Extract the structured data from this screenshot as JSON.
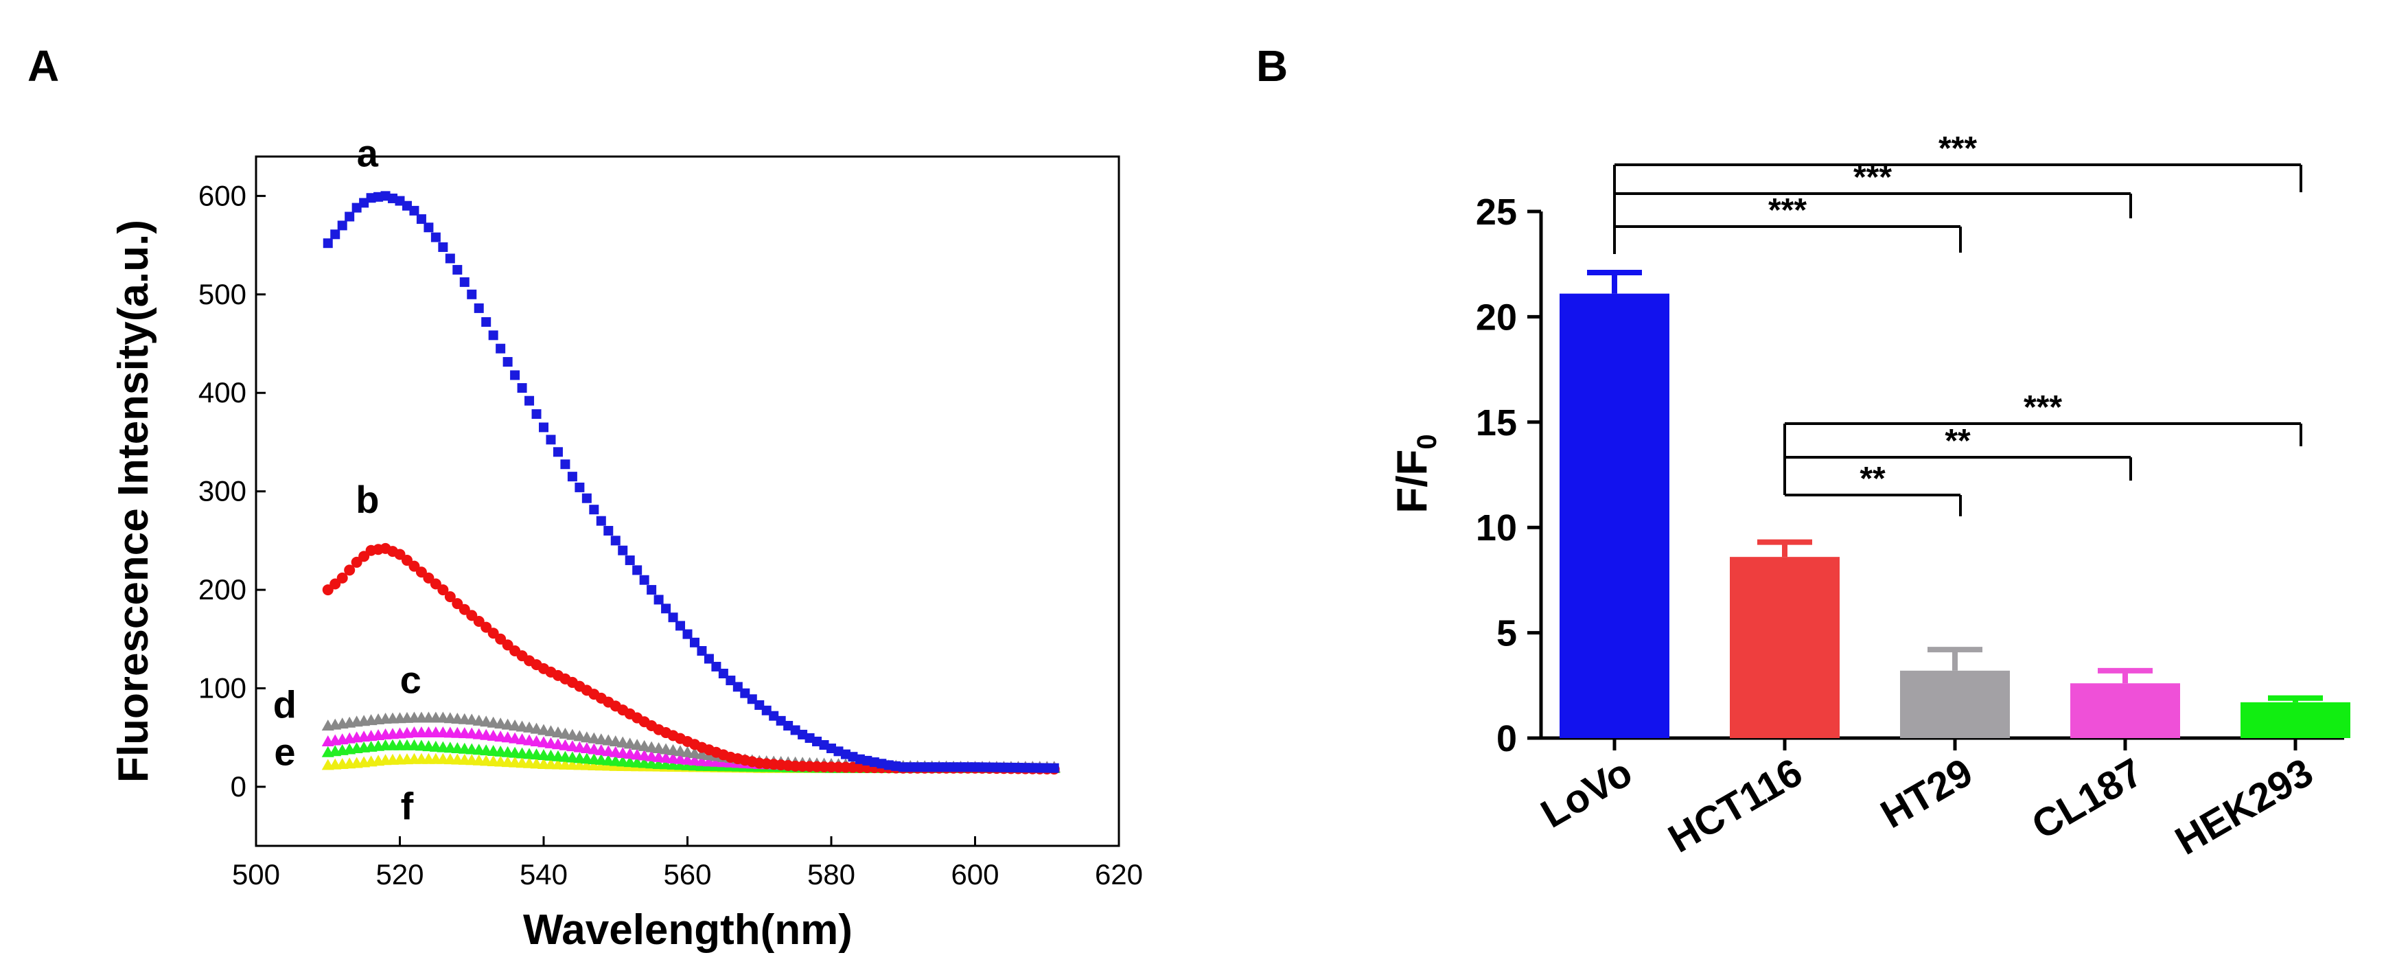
{
  "chart_data": [
    {
      "panel": "A",
      "type": "scatter",
      "xlabel": "Wavelength(nm)",
      "ylabel": "Fluorescence Intensity(a.u.)",
      "xlim": [
        500,
        620
      ],
      "ylim": [
        -60,
        640
      ],
      "xticks": [
        "500",
        "520",
        "540",
        "560",
        "580",
        "600",
        "620"
      ],
      "yticks": [
        "0",
        "100",
        "200",
        "300",
        "400",
        "500",
        "600"
      ],
      "x_range": [
        510,
        611
      ],
      "series": [
        {
          "name": "a",
          "color": "#1a1adf",
          "marker": "square",
          "points": [
            [
              510,
              552
            ],
            [
              512,
              570
            ],
            [
              514,
              588
            ],
            [
              516,
              598
            ],
            [
              518,
              600
            ],
            [
              520,
              595
            ],
            [
              522,
              585
            ],
            [
              524,
              568
            ],
            [
              526,
              548
            ],
            [
              528,
              525
            ],
            [
              530,
              500
            ],
            [
              532,
              472
            ],
            [
              534,
              445
            ],
            [
              536,
              418
            ],
            [
              538,
              392
            ],
            [
              540,
              365
            ],
            [
              542,
              340
            ],
            [
              544,
              315
            ],
            [
              546,
              293
            ],
            [
              548,
              270
            ],
            [
              550,
              250
            ],
            [
              552,
              230
            ],
            [
              554,
              210
            ],
            [
              556,
              190
            ],
            [
              558,
              172
            ],
            [
              560,
              155
            ],
            [
              562,
              138
            ],
            [
              564,
              122
            ],
            [
              566,
              108
            ],
            [
              568,
              95
            ],
            [
              570,
              83
            ],
            [
              572,
              72
            ],
            [
              574,
              62
            ],
            [
              576,
              53
            ],
            [
              578,
              46
            ],
            [
              580,
              39
            ],
            [
              582,
              33
            ],
            [
              584,
              28
            ],
            [
              586,
              25
            ],
            [
              588,
              22
            ],
            [
              590,
              20
            ],
            [
              600,
              20
            ],
            [
              611,
              19
            ]
          ]
        },
        {
          "name": "b",
          "color": "#ee1111",
          "marker": "circle",
          "points": [
            [
              510,
              200
            ],
            [
              512,
              212
            ],
            [
              514,
              228
            ],
            [
              516,
              240
            ],
            [
              518,
              242
            ],
            [
              520,
              236
            ],
            [
              522,
              224
            ],
            [
              524,
              212
            ],
            [
              526,
              200
            ],
            [
              528,
              186
            ],
            [
              530,
              174
            ],
            [
              532,
              162
            ],
            [
              534,
              150
            ],
            [
              536,
              138
            ],
            [
              538,
              128
            ],
            [
              540,
              120
            ],
            [
              542,
              113
            ],
            [
              544,
              106
            ],
            [
              546,
              98
            ],
            [
              548,
              90
            ],
            [
              550,
              82
            ],
            [
              552,
              74
            ],
            [
              554,
              66
            ],
            [
              556,
              58
            ],
            [
              558,
              52
            ],
            [
              560,
              46
            ],
            [
              562,
              40
            ],
            [
              564,
              35
            ],
            [
              566,
              30
            ],
            [
              568,
              27
            ],
            [
              570,
              24
            ],
            [
              575,
              21
            ],
            [
              580,
              20
            ],
            [
              590,
              19
            ],
            [
              600,
              19
            ],
            [
              611,
              18
            ]
          ]
        },
        {
          "name": "c",
          "color": "#888888",
          "marker": "triangle",
          "points": [
            [
              510,
              62
            ],
            [
              514,
              66
            ],
            [
              518,
              69
            ],
            [
              522,
              70
            ],
            [
              526,
              70
            ],
            [
              530,
              68
            ],
            [
              534,
              64
            ],
            [
              538,
              60
            ],
            [
              542,
              55
            ],
            [
              546,
              50
            ],
            [
              550,
              46
            ],
            [
              555,
              40
            ],
            [
              560,
              35
            ],
            [
              565,
              30
            ],
            [
              570,
              26
            ],
            [
              580,
              23
            ],
            [
              590,
              21
            ],
            [
              600,
              20
            ],
            [
              611,
              20
            ]
          ]
        },
        {
          "name": "d",
          "color": "#ee22ee",
          "marker": "triangle",
          "points": [
            [
              510,
              46
            ],
            [
              514,
              50
            ],
            [
              518,
              53
            ],
            [
              522,
              55
            ],
            [
              526,
              55
            ],
            [
              530,
              54
            ],
            [
              535,
              50
            ],
            [
              540,
              45
            ],
            [
              545,
              40
            ],
            [
              550,
              35
            ],
            [
              556,
              30
            ],
            [
              562,
              26
            ],
            [
              570,
              23
            ],
            [
              580,
              21
            ],
            [
              590,
              20
            ],
            [
              600,
              20
            ],
            [
              611,
              20
            ]
          ]
        },
        {
          "name": "e",
          "color": "#22ee22",
          "marker": "triangle",
          "points": [
            [
              510,
              35
            ],
            [
              514,
              39
            ],
            [
              518,
              42
            ],
            [
              522,
              42
            ],
            [
              526,
              40
            ],
            [
              530,
              38
            ],
            [
              535,
              35
            ],
            [
              540,
              32
            ],
            [
              545,
              29
            ],
            [
              550,
              26
            ],
            [
              556,
              23
            ],
            [
              562,
              21
            ],
            [
              570,
              20
            ],
            [
              580,
              19
            ],
            [
              590,
              19
            ],
            [
              600,
              19
            ],
            [
              611,
              19
            ]
          ]
        },
        {
          "name": "f",
          "color": "#eeee11",
          "marker": "triangle",
          "points": [
            [
              510,
              22
            ],
            [
              514,
              24
            ],
            [
              518,
              27
            ],
            [
              522,
              28
            ],
            [
              526,
              28
            ],
            [
              530,
              27
            ],
            [
              535,
              25
            ],
            [
              540,
              23
            ],
            [
              545,
              22
            ],
            [
              550,
              21
            ],
            [
              560,
              20
            ],
            [
              570,
              19
            ],
            [
              580,
              19
            ],
            [
              590,
              19
            ],
            [
              600,
              19
            ],
            [
              611,
              19
            ]
          ]
        }
      ],
      "curve_labels": [
        "a",
        "b",
        "c",
        "d",
        "e",
        "f"
      ]
    },
    {
      "panel": "B",
      "type": "bar",
      "ylabel_main": "F/F",
      "ylabel_sub": "0",
      "ylim": [
        0,
        25
      ],
      "yticks": [
        "0",
        "5",
        "10",
        "15",
        "20",
        "25"
      ],
      "categories": [
        "LoVo",
        "HCT116",
        "HT29",
        "CL187",
        "HEK293"
      ],
      "values": [
        21.1,
        8.6,
        3.2,
        2.6,
        1.7
      ],
      "errors": [
        1.0,
        0.7,
        1.0,
        0.6,
        0.2
      ],
      "colors": [
        "#1212ee",
        "#ee3e3e",
        "#a3a1a5",
        "#ef50d8",
        "#11ee11"
      ],
      "significance": [
        {
          "from": 0,
          "to": 4,
          "label": "***"
        },
        {
          "from": 0,
          "to": 3,
          "label": "***"
        },
        {
          "from": 0,
          "to": 2,
          "label": "***"
        },
        {
          "from": 1,
          "to": 4,
          "label": "***"
        },
        {
          "from": 1,
          "to": 3,
          "label": "**"
        },
        {
          "from": 1,
          "to": 2,
          "label": "**"
        }
      ]
    }
  ],
  "panels": {
    "a_letter": "A",
    "b_letter": "B"
  }
}
